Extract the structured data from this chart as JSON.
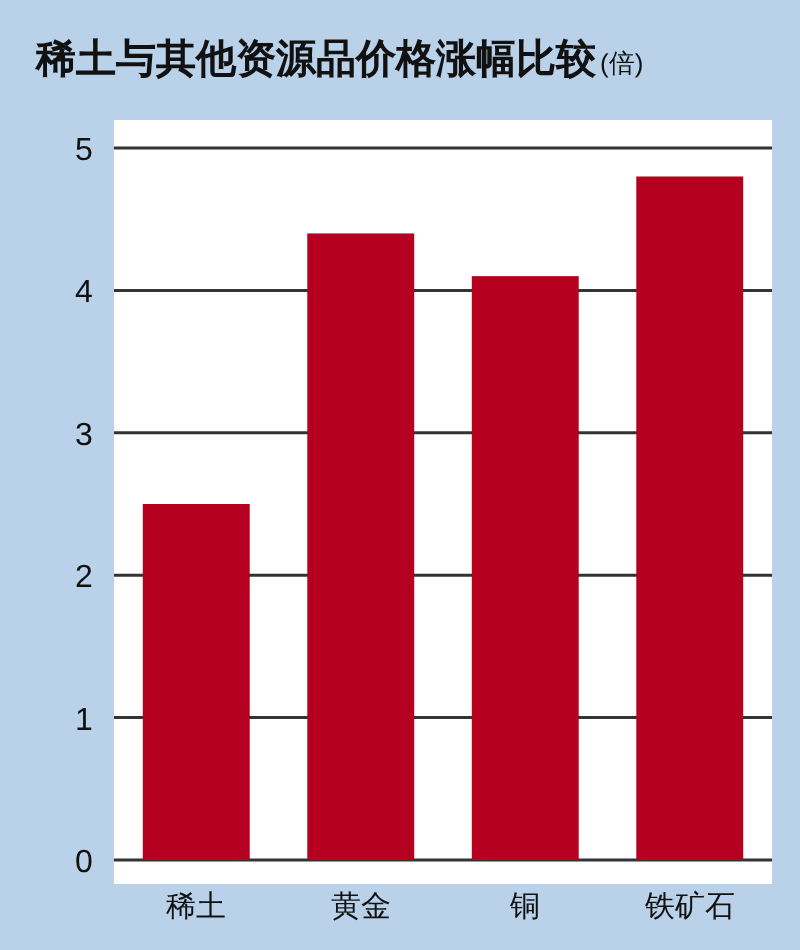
{
  "chart_data": {
    "type": "bar",
    "title": "稀土与其他资源品价格涨幅比较",
    "ylabel": "(倍)",
    "categories": [
      "稀土",
      "黄金",
      "铜",
      "铁矿石"
    ],
    "values": [
      2.5,
      4.4,
      4.1,
      4.8
    ],
    "color": "#b5001f",
    "ylim": [
      0,
      5
    ],
    "yticks": [
      0,
      1,
      2,
      3,
      4,
      5
    ],
    "grid": "y"
  }
}
